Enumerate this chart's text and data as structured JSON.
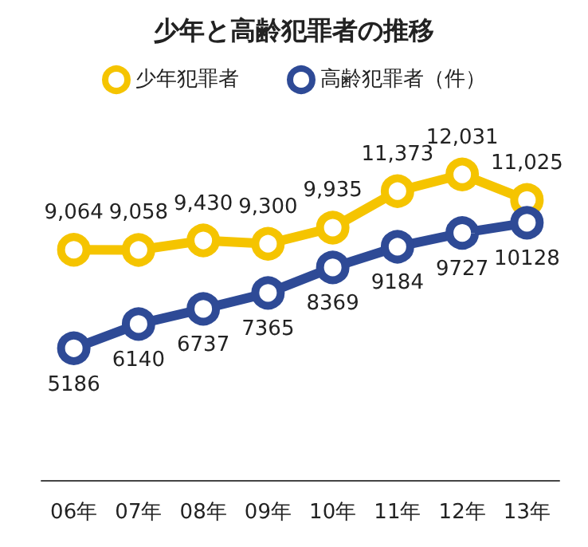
{
  "chart_data": {
    "type": "line",
    "title": "少年と高齢犯罪者の推移",
    "categories": [
      "06年",
      "07年",
      "08年",
      "09年",
      "10年",
      "11年",
      "12年",
      "13年"
    ],
    "series": [
      {
        "name": "少年犯罪者",
        "color": "#f5c400",
        "values": [
          9064,
          9058,
          9430,
          9300,
          9935,
          11373,
          12031,
          11025
        ],
        "value_labels": [
          "9,064",
          "9,058",
          "9,430",
          "9,300",
          "9,935",
          "11,373",
          "12,031",
          "11,025"
        ]
      },
      {
        "name": "高齢犯罪者（件）",
        "color": "#2e4a96",
        "values": [
          5186,
          6140,
          6737,
          7365,
          8369,
          9184,
          9727,
          10128
        ],
        "value_labels": [
          "5186",
          "6140",
          "6737",
          "7365",
          "8369",
          "9184",
          "9727",
          "10128"
        ]
      }
    ],
    "legend": "top",
    "tick_labels": "x",
    "marker": "circle",
    "line_style": "solid"
  }
}
